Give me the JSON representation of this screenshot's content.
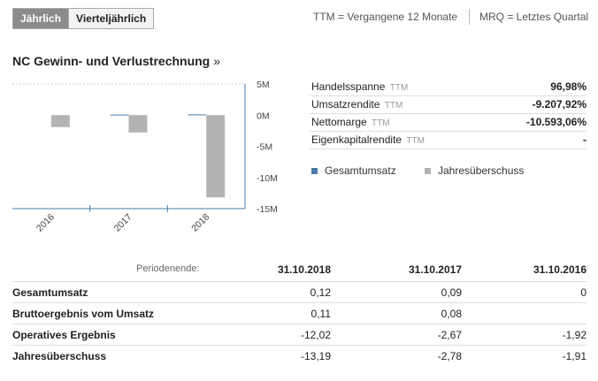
{
  "period_toggle": {
    "annual": "Jährlich",
    "quarterly": "Vierteljährlich"
  },
  "abbrev": {
    "ttm": "TTM = Vergangene 12 Monate",
    "mrq": "MRQ = Letztes Quartal"
  },
  "section_title": "NC Gewinn- und Verlustrechnung",
  "section_chevron": "»",
  "colors": {
    "revenue": "#4a7aa7",
    "net_income": "#b3b3b3",
    "axis": "#4a7aa7"
  },
  "metrics": [
    {
      "label": "Handelsspanne",
      "tag": "TTM",
      "value": "96,98%"
    },
    {
      "label": "Umsatzrendite",
      "tag": "TTM",
      "value": "-9.207,92%"
    },
    {
      "label": "Nettomarge",
      "tag": "TTM",
      "value": "-10.593,06%"
    },
    {
      "label": "Eigenkapitalrendite",
      "tag": "TTM",
      "value": "-"
    }
  ],
  "chart_data": {
    "type": "bar",
    "categories": [
      "2016",
      "2017",
      "2018"
    ],
    "series": [
      {
        "name": "Gesamtumsatz",
        "values": [
          0,
          0.09,
          0.12
        ]
      },
      {
        "name": "Jahresüberschuss",
        "values": [
          -1.91,
          -2.78,
          -13.19
        ]
      }
    ],
    "ylim": [
      -15,
      5
    ],
    "ytick_labels": [
      "5M",
      "0M",
      "-5M",
      "-10M",
      "-15M"
    ],
    "yticks": [
      5,
      0,
      -5,
      -10,
      -15
    ],
    "legend": "right"
  },
  "table": {
    "period_label": "Periodenende:",
    "columns": [
      "31.10.2018",
      "31.10.2017",
      "31.10.2016"
    ],
    "rows": [
      {
        "name": "Gesamtumsatz",
        "values": [
          "0,12",
          "0,09",
          "0"
        ]
      },
      {
        "name": "Bruttoergebnis vom Umsatz",
        "values": [
          "0,11",
          "0,08",
          ""
        ]
      },
      {
        "name": "Operatives Ergebnis",
        "values": [
          "-12,02",
          "-2,67",
          "-1,92"
        ]
      },
      {
        "name": "Jahresüberschuss",
        "values": [
          "-13,19",
          "-2,78",
          "-1,91"
        ]
      }
    ]
  }
}
